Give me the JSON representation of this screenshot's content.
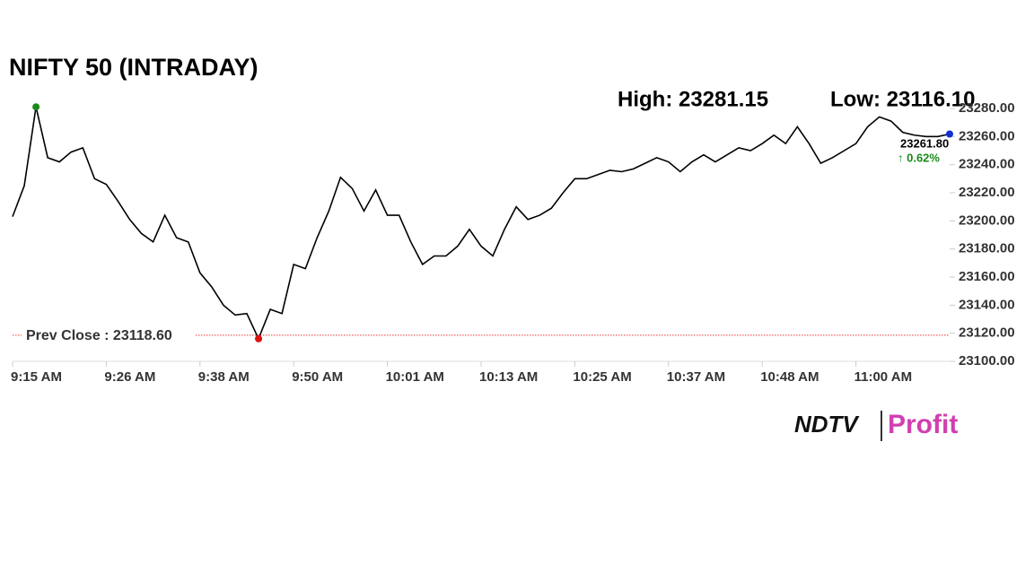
{
  "chart_data": {
    "type": "line",
    "title": "NIFTY 50 (INTRADAY)",
    "high_label": "High: 23281.15",
    "low_label": "Low: 23116.10",
    "categories": [
      "9:15 AM",
      null,
      null,
      null,
      null,
      null,
      null,
      null,
      "9:26 AM",
      null,
      null,
      null,
      null,
      null,
      null,
      null,
      "9:38 AM",
      null,
      null,
      null,
      null,
      null,
      null,
      null,
      "9:50 AM",
      null,
      null,
      null,
      null,
      null,
      null,
      null,
      "10:01 AM",
      null,
      null,
      null,
      null,
      null,
      null,
      null,
      "10:13 AM",
      null,
      null,
      null,
      null,
      null,
      null,
      null,
      "10:25 AM",
      null,
      null,
      null,
      null,
      null,
      null,
      null,
      "10:37 AM",
      null,
      null,
      null,
      null,
      null,
      null,
      null,
      "10:48 AM",
      null,
      null,
      null,
      null,
      null,
      null,
      null,
      "11:00 AM",
      null,
      null,
      null,
      null,
      null,
      null,
      null,
      null
    ],
    "series": [
      {
        "name": "NIFTY 50",
        "color": "#000000",
        "values": [
          23203,
          23225,
          23281.15,
          23245,
          23242,
          23249,
          23252,
          23230,
          23226,
          23214,
          23201,
          23191,
          23185,
          23204,
          23188,
          23185,
          23163,
          23153,
          23140,
          23133,
          23134,
          23116.1,
          23137,
          23134,
          23169,
          23166,
          23188,
          23207,
          23231,
          23223,
          23207,
          23222,
          23204,
          23204,
          23185,
          23169,
          23175,
          23175,
          23182,
          23194,
          23182,
          23175,
          23194,
          23210,
          23201,
          23204,
          23209,
          23220,
          23230,
          23230,
          23233,
          23236,
          23235,
          23237,
          23241,
          23245,
          23242,
          23235,
          23242,
          23247,
          23242,
          23247,
          23252,
          23250,
          23255,
          23261,
          23255,
          23267,
          23255,
          23241,
          23245,
          23250,
          23255,
          23267,
          23274,
          23271,
          23263,
          23261,
          23260,
          23260,
          23261.8
        ]
      }
    ],
    "last_price": "23261.80",
    "change_label": "↑ 0.62%",
    "prev_close": {
      "value": 23118.6,
      "label": "Prev Close : 23118.60"
    },
    "ylim": [
      23100,
      23280
    ],
    "yticks": [
      {
        "value": 23100,
        "label": "23100.00"
      },
      {
        "value": 23120,
        "label": "23120.00"
      },
      {
        "value": 23140,
        "label": "23140.00"
      },
      {
        "value": 23160,
        "label": "23160.00"
      },
      {
        "value": 23180,
        "label": "23180.00"
      },
      {
        "value": 23200,
        "label": "23200.00"
      },
      {
        "value": 23220,
        "label": "23220.00"
      },
      {
        "value": 23240,
        "label": "23240.00"
      },
      {
        "value": 23260,
        "label": "23260.00"
      },
      {
        "value": 23280,
        "label": "23280.00"
      }
    ],
    "brand": {
      "left": "NDTV",
      "right": "Profit"
    }
  }
}
